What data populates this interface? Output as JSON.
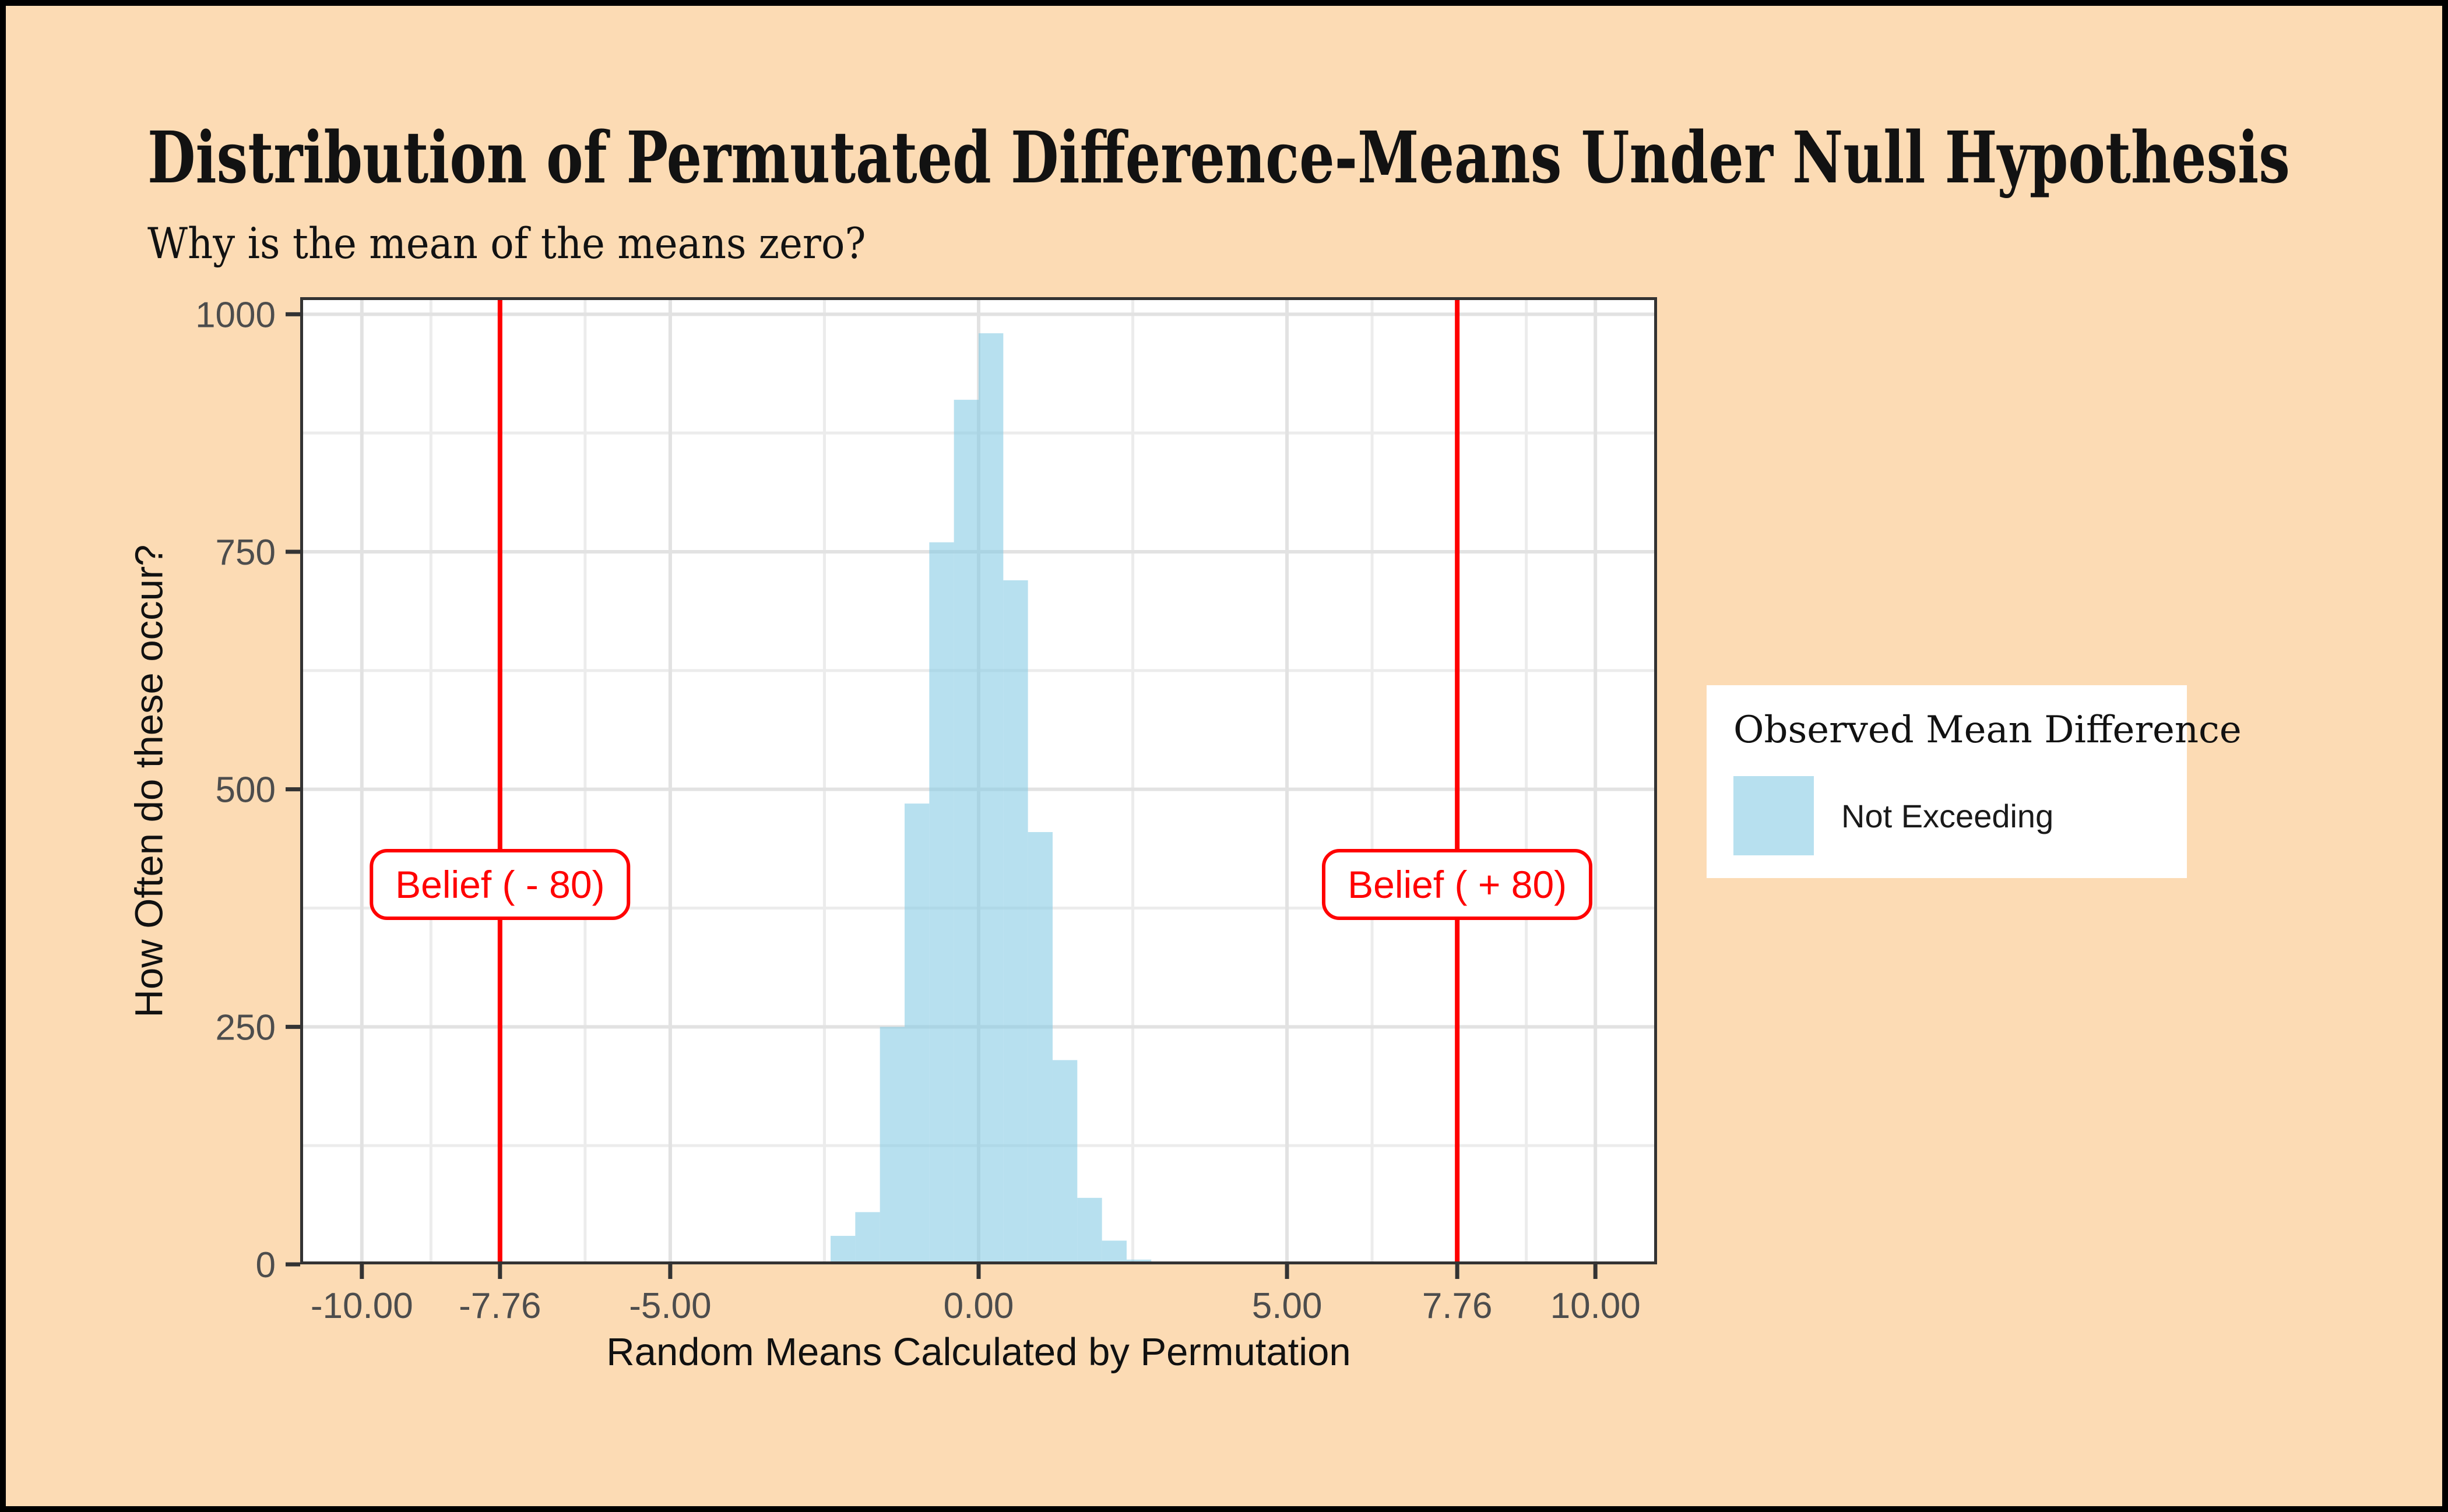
{
  "window": {
    "background_color": "#FCDBB4",
    "frame_color": "#000000"
  },
  "chart_data": {
    "type": "bar",
    "subtype": "histogram",
    "title": "Distribution of Permutated Difference-Means Under Null Hypothesis",
    "subtitle": "Why is the mean of the means zero?",
    "xlabel": "Random Means Calculated by Permutation",
    "ylabel": "How Often do these occur?",
    "xlim": [
      -11,
      11
    ],
    "ylim": [
      0,
      1018
    ],
    "grid": "on",
    "x_ticks": [
      {
        "value": -10,
        "label": "-10.00"
      },
      {
        "value": -7.76,
        "label": "-7.76"
      },
      {
        "value": -5,
        "label": "-5.00"
      },
      {
        "value": 0,
        "label": "0.00"
      },
      {
        "value": 5,
        "label": "5.00"
      },
      {
        "value": 7.76,
        "label": "7.76"
      },
      {
        "value": 10,
        "label": "10.00"
      }
    ],
    "x_minor_gridlines": [
      -8.88,
      -6.38,
      -2.5,
      2.5,
      6.38,
      8.88
    ],
    "y_ticks": [
      {
        "value": 0,
        "label": "0"
      },
      {
        "value": 250,
        "label": "250"
      },
      {
        "value": 500,
        "label": "500"
      },
      {
        "value": 750,
        "label": "750"
      },
      {
        "value": 1000,
        "label": "1000"
      }
    ],
    "y_minor_gridlines": [
      125,
      375,
      625,
      875
    ],
    "bin_width": 0.4,
    "bars": [
      {
        "x_left": -2.4,
        "count": 30
      },
      {
        "x_left": -2.0,
        "count": 55
      },
      {
        "x_left": -1.6,
        "count": 250
      },
      {
        "x_left": -1.2,
        "count": 485
      },
      {
        "x_left": -0.8,
        "count": 760
      },
      {
        "x_left": -0.4,
        "count": 910
      },
      {
        "x_left": 0.0,
        "count": 980
      },
      {
        "x_left": 0.4,
        "count": 720
      },
      {
        "x_left": 0.8,
        "count": 455
      },
      {
        "x_left": 1.2,
        "count": 215
      },
      {
        "x_left": 1.6,
        "count": 70
      },
      {
        "x_left": 2.0,
        "count": 25
      },
      {
        "x_left": 2.4,
        "count": 5
      }
    ],
    "vlines": [
      {
        "x": -7.76,
        "label": "Belief ( - 80)",
        "label_y": 400
      },
      {
        "x": 7.76,
        "label": "Belief ( + 80)",
        "label_y": 400
      }
    ],
    "colors": {
      "bar_fill": "#B7E0EF",
      "bar_fill_rgba": "rgba(135,203,228,0.6)",
      "vline": "#FF0000",
      "grid_major": "#E2E2E2",
      "grid_minor": "#ECECEC",
      "axis_text": "#4D4D4D",
      "tick_mark": "#333333",
      "panel_border": "#333333",
      "panel_background": "#FFFFFF"
    }
  },
  "legend": {
    "position": "right",
    "title": "Observed Mean Difference",
    "items": [
      {
        "label": "Not Exceeding",
        "swatch_color": "#B7E0EF"
      }
    ]
  }
}
